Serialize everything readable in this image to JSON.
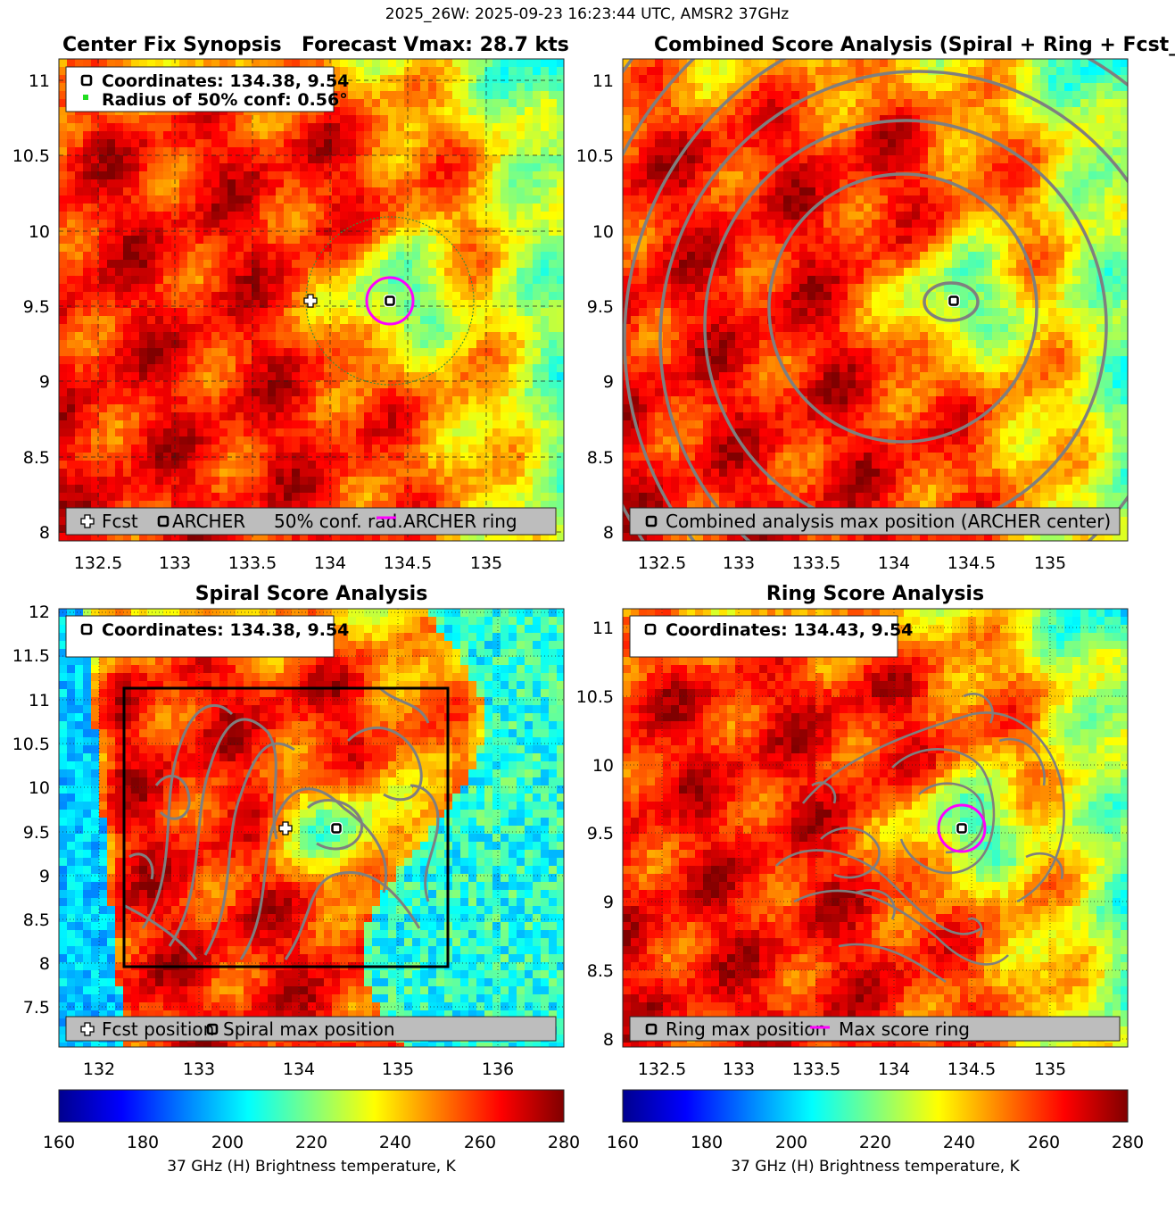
{
  "figure": {
    "suptitle": "2025_26W: 2025-09-23 16:23:44 UTC, AMSR2 37GHz"
  },
  "colorbar": {
    "ticks": [
      "160",
      "180",
      "200",
      "220",
      "240",
      "260",
      "280"
    ],
    "label": "37 GHz (H) Brightness temperature, K",
    "range": [
      160,
      280
    ]
  },
  "panels": {
    "p1": {
      "title_left": "Center Fix Synopsis",
      "title_right": "Forecast Vmax: 28.7 kts",
      "info_line1": "Coordinates: 134.38, 9.54",
      "info_line2": "Radius of 50% conf: 0.56°",
      "legend": {
        "fcst": "Fcst",
        "archer": "ARCHER",
        "conf": "50% conf. rad.",
        "ring": "ARCHER ring"
      },
      "xticks": [
        "132.5",
        "133",
        "133.5",
        "134",
        "134.5",
        "135"
      ],
      "yticks": [
        "11",
        "10.5",
        "10",
        "9.5",
        "9",
        "8.5",
        "8"
      ]
    },
    "p2": {
      "title": "Combined Score Analysis (Spiral + Ring + Fcst_Pe",
      "legend": "Combined analysis max position (ARCHER center)",
      "xticks": [
        "132.5",
        "133",
        "133.5",
        "134",
        "134.5",
        "135"
      ],
      "yticks": [
        "11",
        "10.5",
        "10",
        "9.5",
        "9",
        "8.5",
        "8"
      ]
    },
    "p3": {
      "title": "Spiral Score Analysis",
      "info": "Coordinates: 134.38, 9.54",
      "legend": {
        "fcst": "Fcst position",
        "spiral": "Spiral max position"
      },
      "xticks": [
        "132",
        "133",
        "134",
        "135",
        "136"
      ],
      "yticks": [
        "12",
        "11.5",
        "11",
        "10.5",
        "10",
        "9.5",
        "9",
        "8.5",
        "8",
        "7.5"
      ]
    },
    "p4": {
      "title": "Ring Score Analysis",
      "info": "Coordinates: 134.43, 9.54",
      "legend": {
        "ring_max": "Ring max position",
        "score_ring": "Max score ring"
      },
      "xticks": [
        "132.5",
        "133",
        "133.5",
        "134",
        "134.5",
        "135"
      ],
      "yticks": [
        "11",
        "10.5",
        "10",
        "9.5",
        "9",
        "8.5",
        "8"
      ]
    }
  },
  "chart_data": [
    {
      "type": "heatmap",
      "title": "Center Fix Synopsis",
      "subtitle": "Forecast Vmax: 28.7 kts",
      "xlim": [
        132.2,
        135.45
      ],
      "ylim": [
        7.95,
        11.15
      ],
      "fcst_position": [
        133.88,
        9.52
      ],
      "archer_center": [
        134.38,
        9.54
      ],
      "confidence_radius_deg": 0.56,
      "colorbar_range_K": [
        160,
        280
      ]
    },
    {
      "type": "heatmap",
      "title": "Combined Score Analysis (Spiral + Ring + Fcst_Pe",
      "xlim": [
        132.2,
        135.45
      ],
      "ylim": [
        7.95,
        11.15
      ],
      "combined_max_position": [
        134.38,
        9.54
      ]
    },
    {
      "type": "heatmap",
      "title": "Spiral Score Analysis",
      "xlim": [
        131.5,
        136.65
      ],
      "ylim": [
        7.05,
        12.05
      ],
      "fcst_position": [
        133.88,
        9.52
      ],
      "spiral_max_position": [
        134.38,
        9.54
      ],
      "search_box": {
        "lon": [
          132.15,
          135.4
        ],
        "lat": [
          7.95,
          11.15
        ]
      }
    },
    {
      "type": "heatmap",
      "title": "Ring Score Analysis",
      "xlim": [
        132.2,
        135.45
      ],
      "ylim": [
        7.95,
        11.15
      ],
      "ring_max_position": [
        134.43,
        9.54
      ]
    }
  ]
}
